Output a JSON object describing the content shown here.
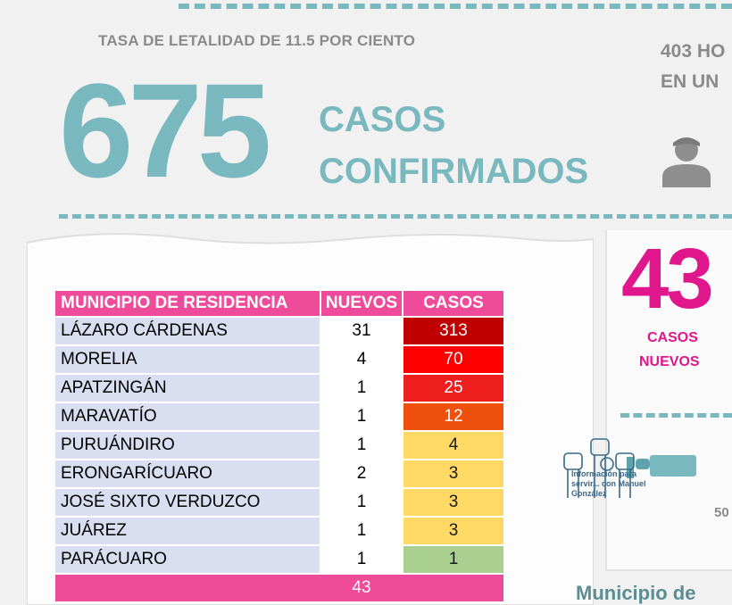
{
  "header": {
    "tasa": "TASA DE LETALIDAD DE 11.5 POR CIENTO",
    "total": "675",
    "casos_line1": "CASOS",
    "casos_line2": "CONFIRMADOS",
    "hosp_line1": "403 HO",
    "hosp_line2": "EN UN"
  },
  "new_cases": {
    "number": "43",
    "label_line1": "CASOS",
    "label_line2": "NUEVOS",
    "partial_number": "50"
  },
  "table": {
    "headers": [
      "MUNICIPIO DE RESIDENCIA",
      "NUEVOS",
      "CASOS"
    ],
    "rows": [
      {
        "municipio": "LÁZARO CÁRDENAS",
        "nuevos": "31",
        "casos": "313",
        "color": "#c00000",
        "text_color": "#ffffff"
      },
      {
        "municipio": "MORELIA",
        "nuevos": "4",
        "casos": "70",
        "color": "#ff0000",
        "text_color": "#ffffff"
      },
      {
        "municipio": "APATZINGÁN",
        "nuevos": "1",
        "casos": "25",
        "color": "#f01f1f",
        "text_color": "#ffffff"
      },
      {
        "municipio": "MARAVATÍO",
        "nuevos": "1",
        "casos": "12",
        "color": "#f0500d",
        "text_color": "#ffffff"
      },
      {
        "municipio": "PURUÁNDIRO",
        "nuevos": "1",
        "casos": "4",
        "color": "#ffd966",
        "text_color": "#1a1a1a"
      },
      {
        "municipio": "ERONGARÍCUARO",
        "nuevos": "2",
        "casos": "3",
        "color": "#ffd966",
        "text_color": "#1a1a1a"
      },
      {
        "municipio": "JOSÉ SIXTO VERDUZCO",
        "nuevos": "1",
        "casos": "3",
        "color": "#ffd966",
        "text_color": "#1a1a1a"
      },
      {
        "municipio": "JUÁREZ",
        "nuevos": "1",
        "casos": "3",
        "color": "#ffd966",
        "text_color": "#1a1a1a"
      },
      {
        "municipio": "PARÁCUARO",
        "nuevos": "1",
        "casos": "1",
        "color": "#a9d08e",
        "text_color": "#1a1a1a"
      }
    ],
    "total_nuevos": "43"
  },
  "watermark": {
    "line1": "Información para",
    "line2": "servir... con Manuel",
    "line3": "González"
  },
  "footer_partial": "Municipio de"
}
